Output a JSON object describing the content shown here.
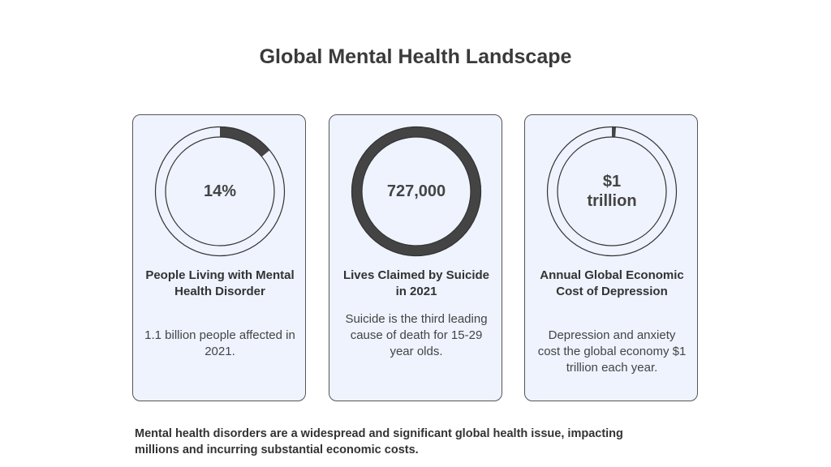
{
  "title": "Global Mental Health Landscape",
  "ring_color": "#444444",
  "card_background": "#eef3fe",
  "cards": [
    {
      "value": "14%",
      "fill_fraction": 0.14,
      "heading": "People Living with Mental Health Disorder",
      "description": "1.1 billion people affected in 2021."
    },
    {
      "value": "727,000",
      "fill_fraction": 1.0,
      "heading": "Lives Claimed by Suicide in 2021",
      "description": "Suicide is the third leading cause of death for 15-29 year olds."
    },
    {
      "value": "$1\ntrillion",
      "fill_fraction": 0.01,
      "heading": "Annual Global Economic Cost of Depression",
      "description": "Depression and anxiety cost the global economy $1 trillion each year."
    }
  ],
  "footer": "Mental health disorders are a widespread and significant global health issue, impacting millions and incurring substantial economic costs."
}
